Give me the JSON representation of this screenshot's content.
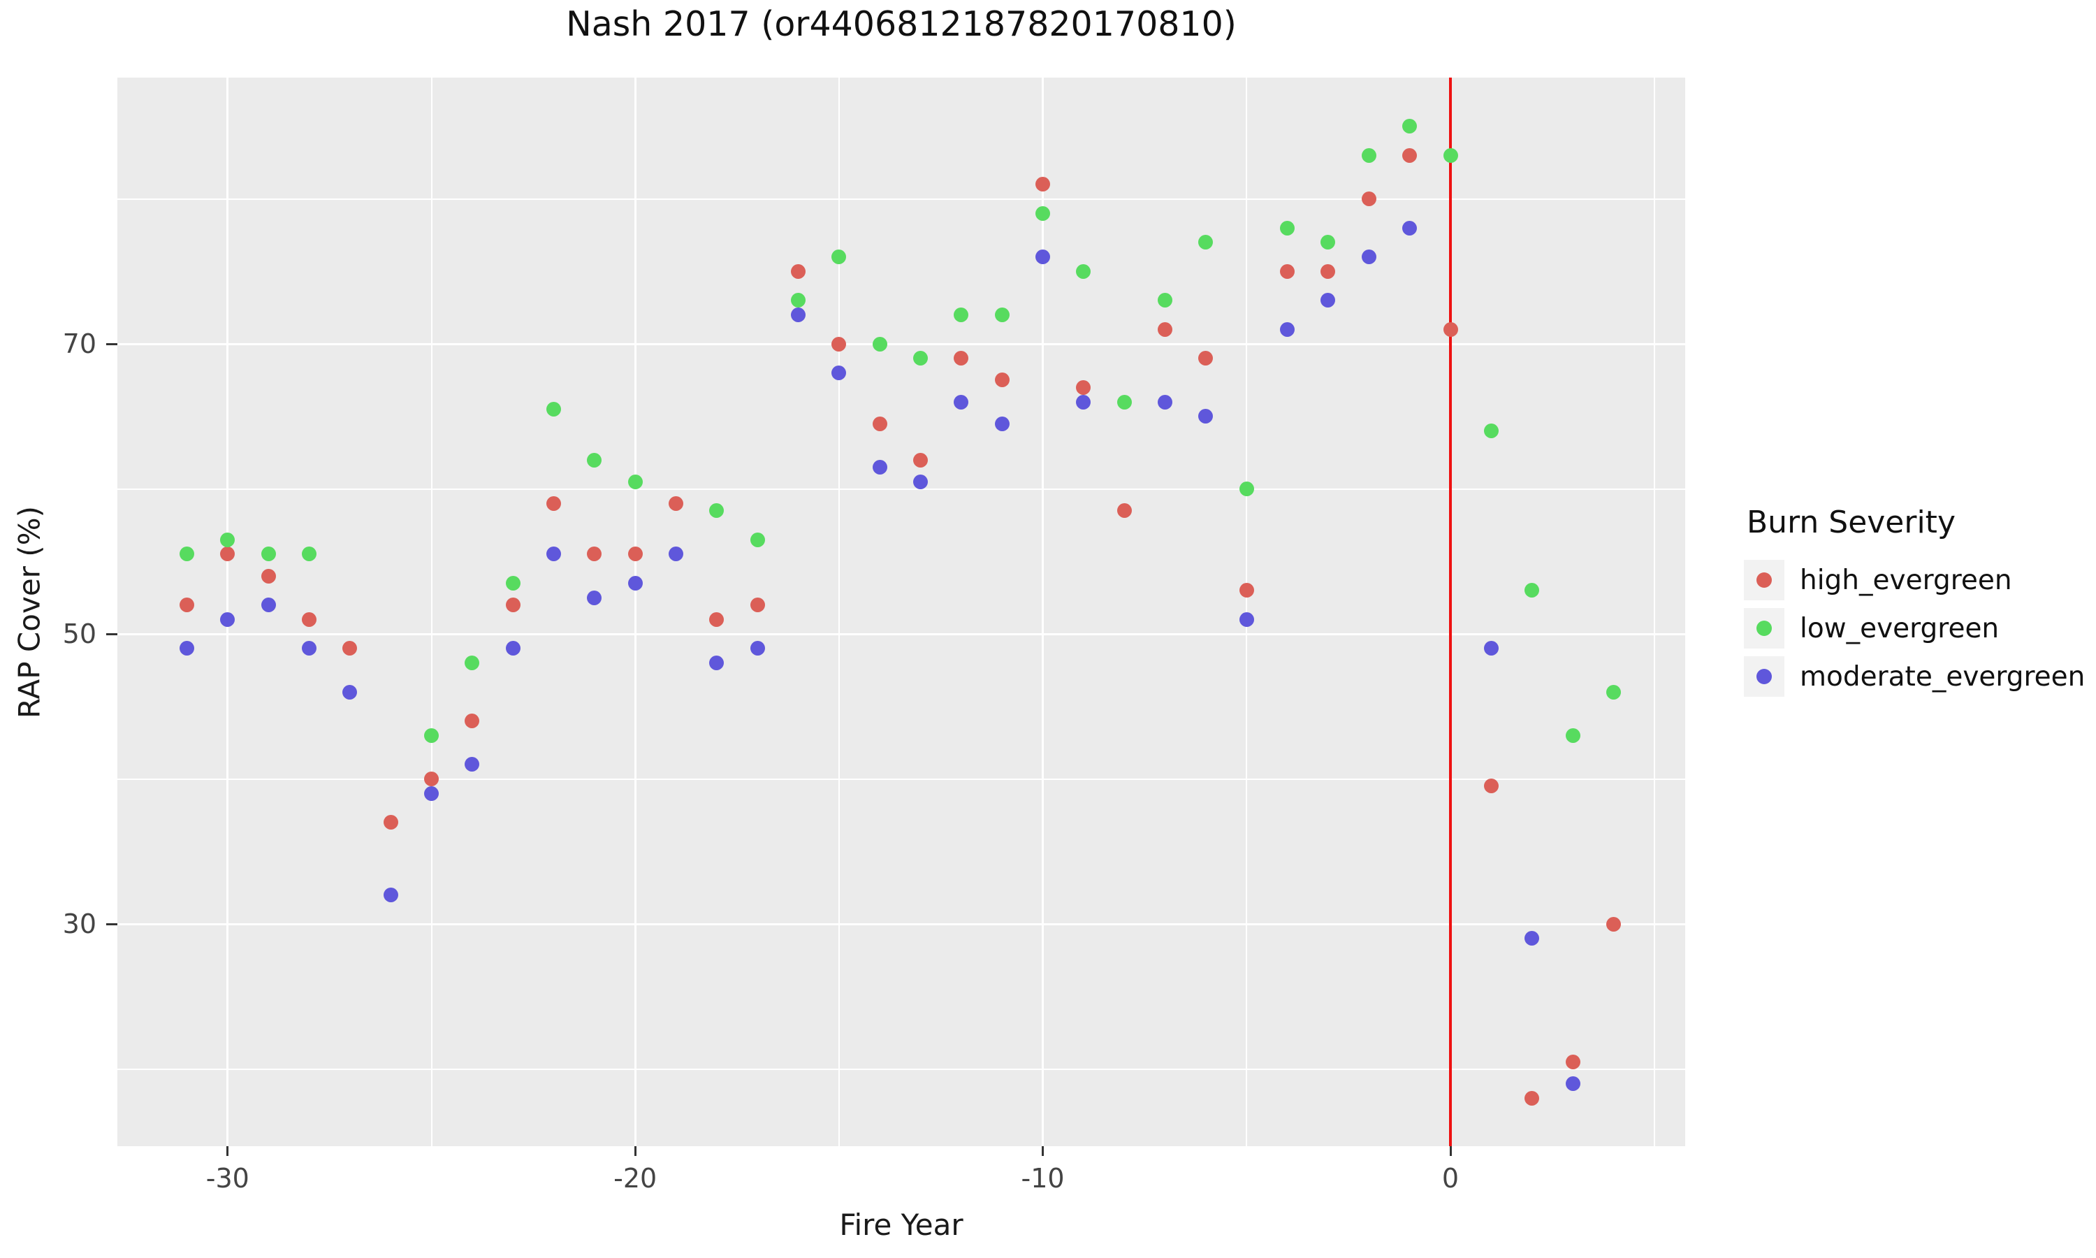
{
  "title": "Nash 2017 (or4406812187820170810)",
  "legend": {
    "title": "Burn Severity"
  },
  "colors": {
    "panel_background": "#EBEBEB",
    "gridline": "#FFFFFF",
    "fire_event_line": "#EE1111",
    "tick_text": "#444444",
    "axis_text": "#1A1A1A"
  },
  "chart_data": {
    "type": "scatter",
    "title": "Nash 2017 (or4406812187820170810)",
    "xlabel": "Fire Year",
    "ylabel": "RAP Cover (%)",
    "xlim": [
      -32.75,
      5.75
    ],
    "ylim": [
      14.6,
      88.4
    ],
    "x_major_ticks": [
      -30,
      -20,
      -10,
      0
    ],
    "x_minor_gridlines": [
      -25,
      -15,
      -5,
      5
    ],
    "y_major_ticks": [
      30,
      50,
      70
    ],
    "y_minor_gridlines": [
      20,
      40,
      60,
      80
    ],
    "grid": "white on gray panel, ggplot style",
    "legend_position": "right",
    "vline": {
      "x": 0,
      "color": "#EE1111",
      "meaning": "fire year zero line"
    },
    "series": [
      {
        "name": "high_evergreen",
        "color": "#DB5F57",
        "points": [
          [
            -31,
            52
          ],
          [
            -30,
            55.5
          ],
          [
            -29,
            54
          ],
          [
            -28,
            51
          ],
          [
            -27,
            49
          ],
          [
            -26,
            37
          ],
          [
            -25,
            40
          ],
          [
            -24,
            44
          ],
          [
            -23,
            52
          ],
          [
            -22,
            59
          ],
          [
            -21,
            55.5
          ],
          [
            -20,
            55.5
          ],
          [
            -19,
            59
          ],
          [
            -18,
            51
          ],
          [
            -17,
            52
          ],
          [
            -16,
            75
          ],
          [
            -15,
            70
          ],
          [
            -14,
            64.5
          ],
          [
            -13,
            62
          ],
          [
            -12,
            69
          ],
          [
            -11,
            67.5
          ],
          [
            -10,
            81
          ],
          [
            -9,
            67
          ],
          [
            -8,
            58.5
          ],
          [
            -7,
            71
          ],
          [
            -6,
            69
          ],
          [
            -5,
            53
          ],
          [
            -4,
            75
          ],
          [
            -3,
            75
          ],
          [
            -2,
            80
          ],
          [
            -1,
            83
          ],
          [
            0,
            71
          ],
          [
            1,
            39.5
          ],
          [
            2,
            18
          ],
          [
            3,
            20.5
          ],
          [
            4,
            30
          ]
        ]
      },
      {
        "name": "low_evergreen",
        "color": "#57DB5F",
        "points": [
          [
            -31,
            55.5
          ],
          [
            -30,
            56.5
          ],
          [
            -29,
            55.5
          ],
          [
            -28,
            55.5
          ],
          [
            -25,
            43
          ],
          [
            -24,
            48
          ],
          [
            -23,
            53.5
          ],
          [
            -22,
            65.5
          ],
          [
            -21,
            62
          ],
          [
            -20,
            60.5
          ],
          [
            -18,
            58.5
          ],
          [
            -17,
            56.5
          ],
          [
            -16,
            73
          ],
          [
            -15,
            76
          ],
          [
            -14,
            70
          ],
          [
            -13,
            69
          ],
          [
            -12,
            72
          ],
          [
            -11,
            72
          ],
          [
            -10,
            79
          ],
          [
            -9,
            75
          ],
          [
            -8,
            66
          ],
          [
            -7,
            73
          ],
          [
            -6,
            77
          ],
          [
            -5,
            60
          ],
          [
            -4,
            78
          ],
          [
            -3,
            77
          ],
          [
            -2,
            83
          ],
          [
            -1,
            85
          ],
          [
            0,
            83
          ],
          [
            1,
            64
          ],
          [
            2,
            53
          ],
          [
            3,
            43
          ],
          [
            4,
            46
          ]
        ]
      },
      {
        "name": "moderate_evergreen",
        "color": "#5F57DB",
        "points": [
          [
            -31,
            49
          ],
          [
            -30,
            51
          ],
          [
            -29,
            52
          ],
          [
            -28,
            49
          ],
          [
            -27,
            46
          ],
          [
            -26,
            32
          ],
          [
            -25,
            39
          ],
          [
            -24,
            41
          ],
          [
            -23,
            49
          ],
          [
            -22,
            55.5
          ],
          [
            -21,
            52.5
          ],
          [
            -20,
            53.5
          ],
          [
            -19,
            55.5
          ],
          [
            -18,
            48
          ],
          [
            -17,
            49
          ],
          [
            -16,
            72
          ],
          [
            -15,
            68
          ],
          [
            -14,
            61.5
          ],
          [
            -13,
            60.5
          ],
          [
            -12,
            66
          ],
          [
            -11,
            64.5
          ],
          [
            -10,
            76
          ],
          [
            -9,
            66
          ],
          [
            -7,
            66
          ],
          [
            -6,
            65
          ],
          [
            -5,
            51
          ],
          [
            -4,
            71
          ],
          [
            -3,
            73
          ],
          [
            -2,
            76
          ],
          [
            -1,
            78
          ],
          [
            1,
            49
          ],
          [
            2,
            29
          ],
          [
            3,
            19
          ]
        ]
      }
    ]
  }
}
